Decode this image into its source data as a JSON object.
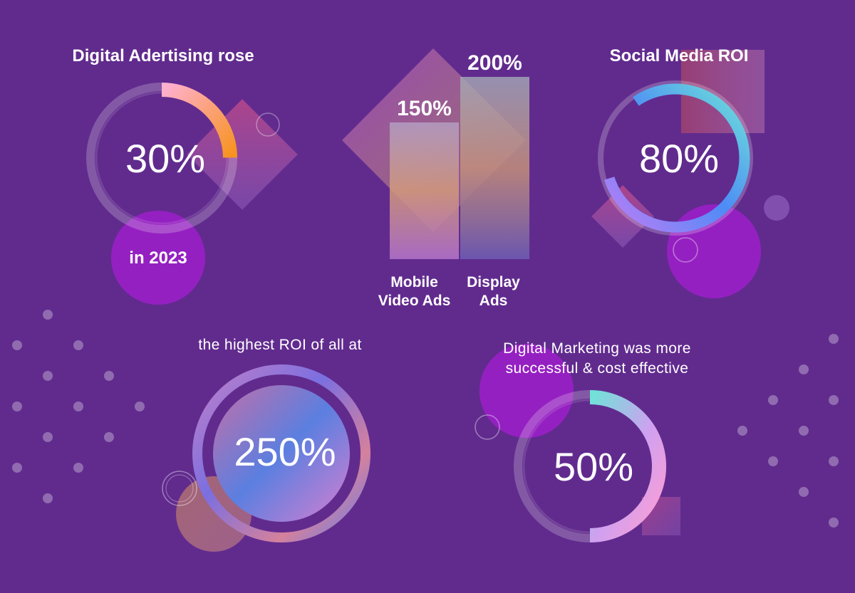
{
  "panels": {
    "ad_growth": {
      "heading": "Digital Adertising rose",
      "value_label": "30%",
      "fraction": 0.3,
      "sub": "in 2023"
    },
    "social": {
      "heading": "Social Media ROI",
      "value_label": "80%",
      "fraction": 0.8
    },
    "highest": {
      "note": "the highest ROI of all at",
      "value_label": "250%"
    },
    "marketing": {
      "note_line1": "Digital Marketing was more",
      "note_line2": "successful & cost effective",
      "value_label": "50%",
      "fraction": 0.5
    }
  },
  "chart_data": {
    "type": "bar",
    "categories": [
      [
        "Mobile",
        "Video Ads"
      ],
      [
        "Display",
        "Ads"
      ]
    ],
    "values": [
      150,
      200
    ],
    "value_labels": [
      "150%",
      "200%"
    ],
    "ylim": [
      0,
      200
    ]
  },
  "colors": {
    "background": "#612b8e",
    "accent_orange": "#f7931e",
    "accent_pink": "#ff9ed2",
    "accent_blue": "#4d8cf5",
    "accent_cyan": "#6ee3d8",
    "accent_violet": "#c07cf7",
    "blob_magenta": "#9b1fc7"
  }
}
